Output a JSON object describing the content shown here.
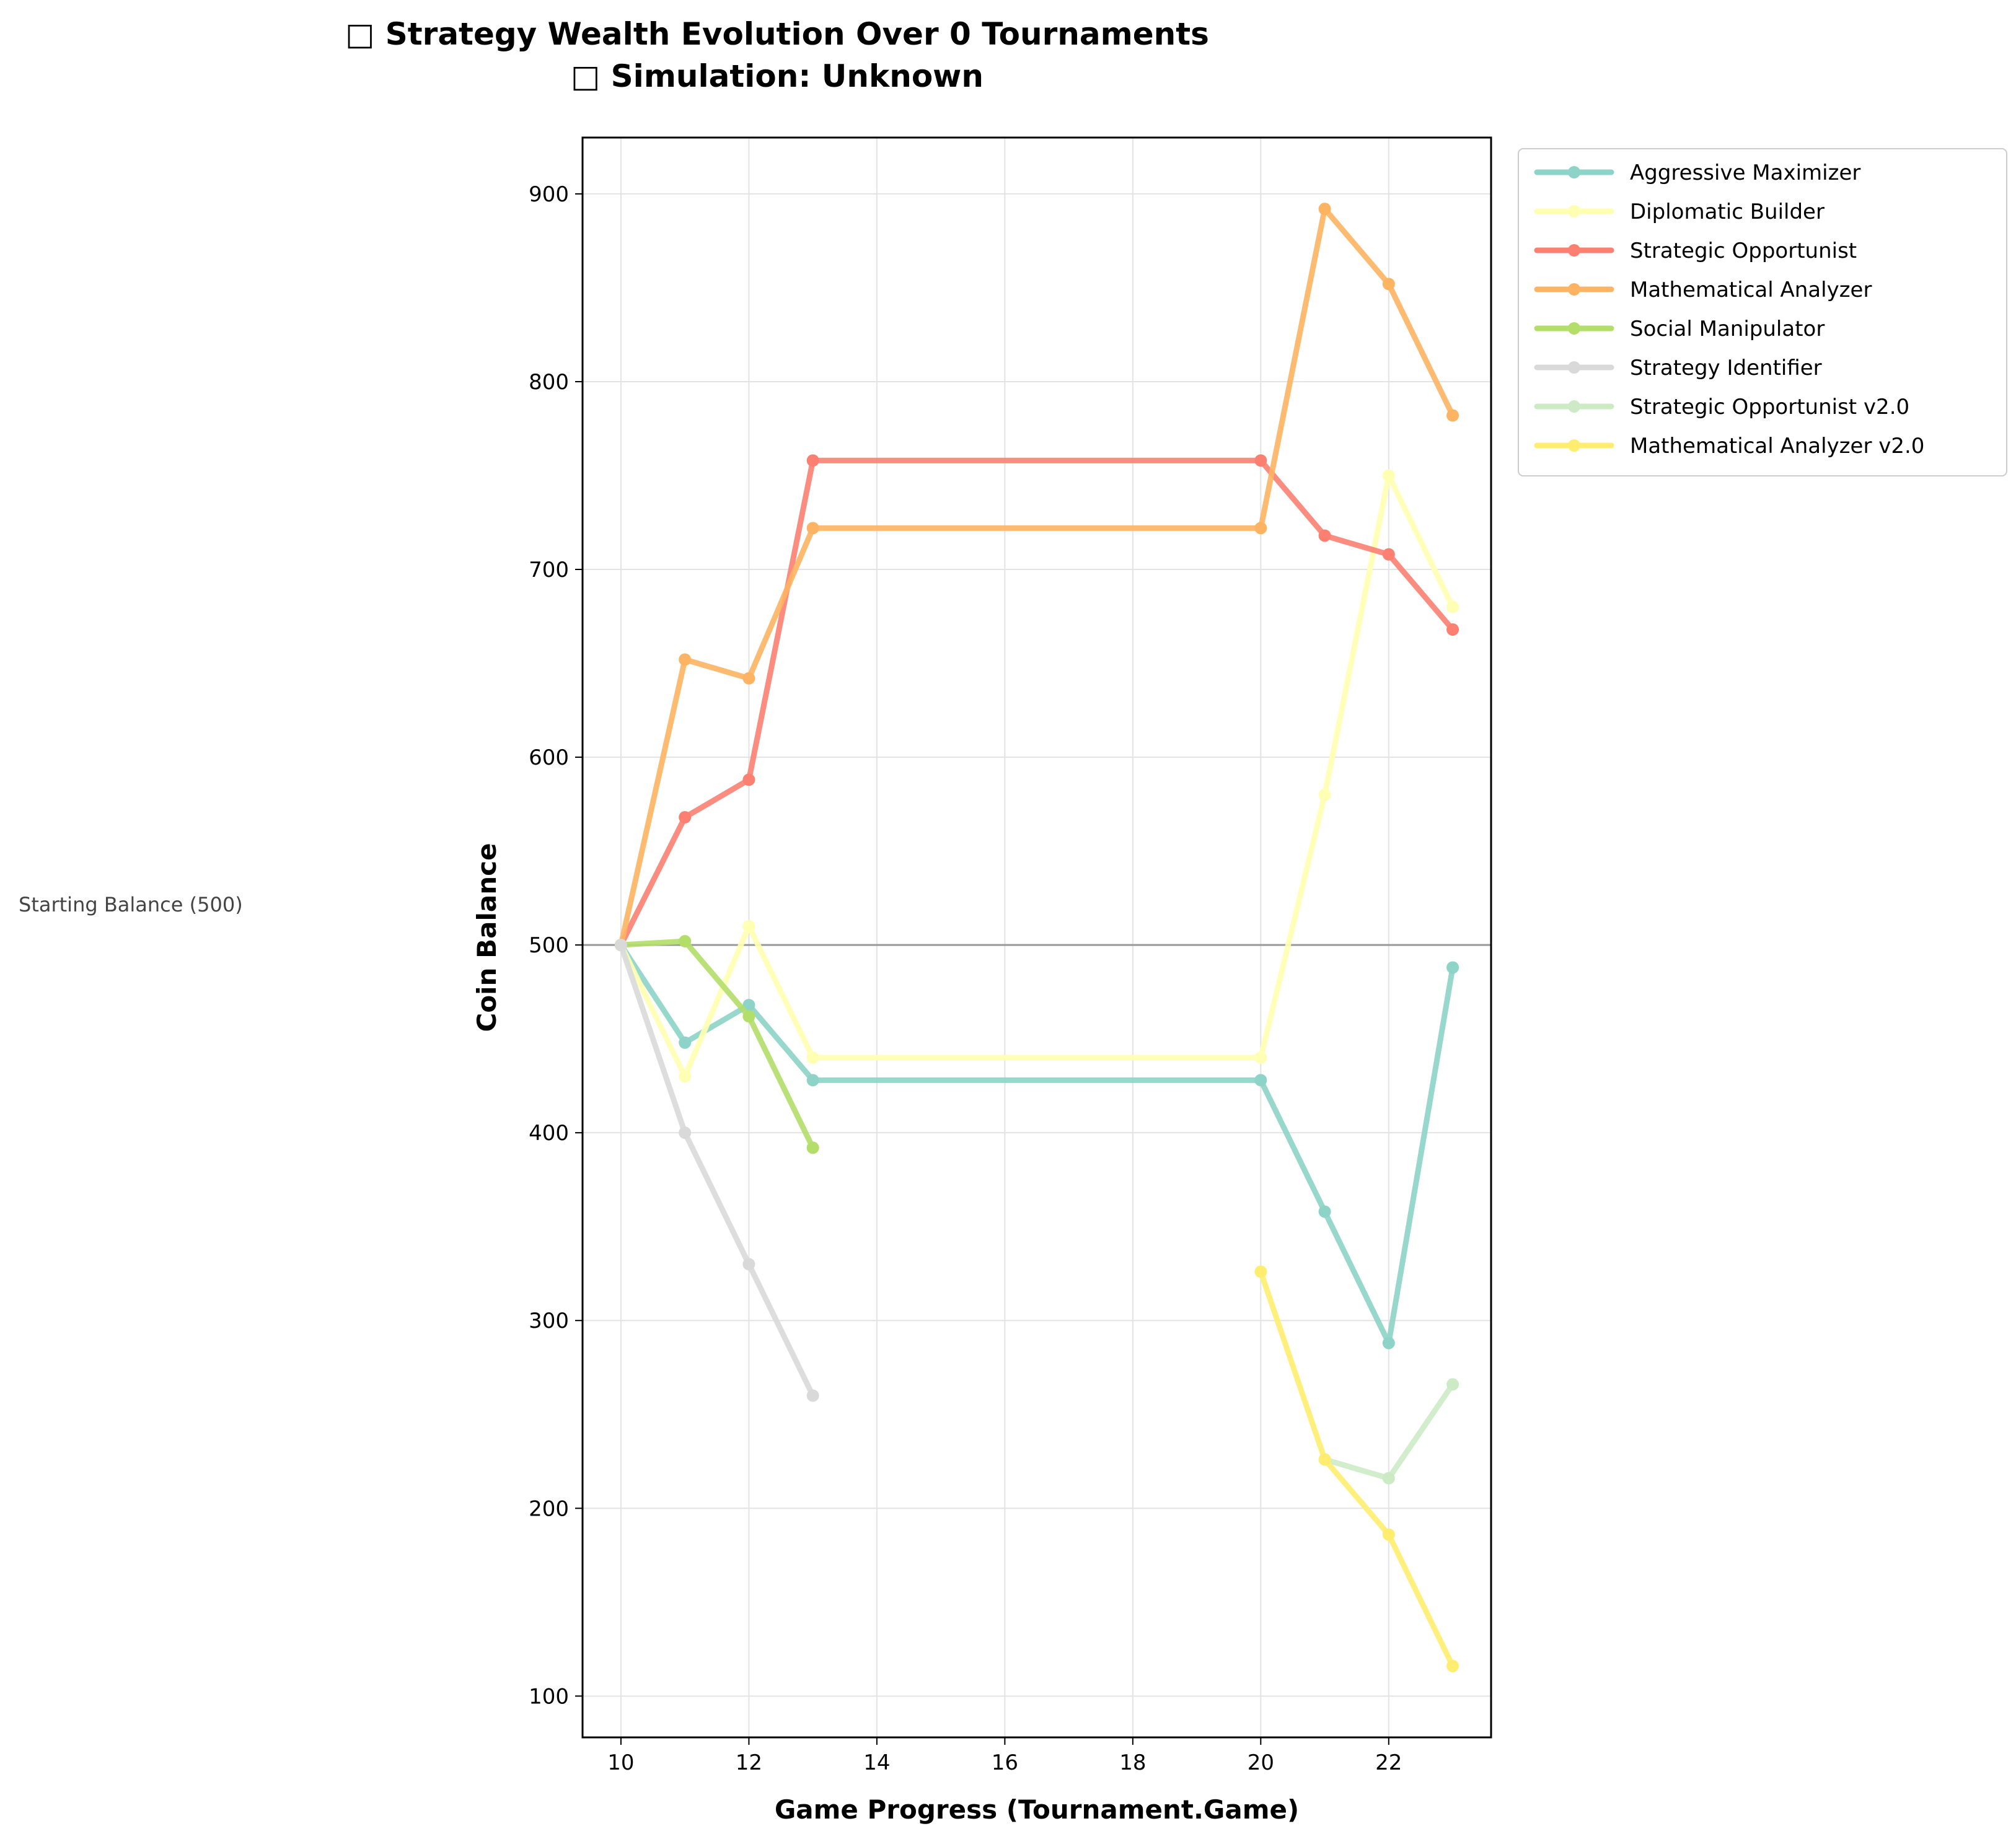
{
  "chart_data": {
    "type": "line",
    "title_line1": "□ Strategy Wealth Evolution Over 0 Tournaments",
    "title_line2": "□ Simulation: Unknown",
    "xlabel": "Game Progress (Tournament.Game)",
    "ylabel": "Coin Balance",
    "xlim": [
      9.4,
      23.6
    ],
    "ylim": [
      78,
      930
    ],
    "xticks": [
      10,
      12,
      14,
      16,
      18,
      20,
      22
    ],
    "yticks": [
      100,
      200,
      300,
      400,
      500,
      600,
      700,
      800,
      900
    ],
    "grid": true,
    "legend_position": "outside-top-right",
    "reference_line": {
      "y": 500,
      "label": "Starting Balance (500)",
      "color": "#999999"
    },
    "series": [
      {
        "name": "Aggressive Maximizer",
        "color": "#8dd3c7",
        "x": [
          10,
          11,
          12,
          13,
          20,
          21,
          22,
          23
        ],
        "y": [
          500,
          448,
          468,
          428,
          428,
          358,
          288,
          488
        ]
      },
      {
        "name": "Diplomatic Builder",
        "color": "#ffffb3",
        "x": [
          10,
          11,
          12,
          13,
          20,
          21,
          22,
          23
        ],
        "y": [
          500,
          430,
          510,
          440,
          440,
          580,
          750,
          680
        ]
      },
      {
        "name": "Strategic Opportunist",
        "color": "#fb8072",
        "x": [
          10,
          11,
          12,
          13,
          20,
          21,
          22,
          23
        ],
        "y": [
          500,
          568,
          588,
          758,
          758,
          718,
          708,
          668
        ]
      },
      {
        "name": "Mathematical Analyzer",
        "color": "#fdb462",
        "x": [
          10,
          11,
          12,
          13,
          20,
          21,
          22,
          23
        ],
        "y": [
          500,
          652,
          642,
          722,
          722,
          892,
          852,
          782
        ]
      },
      {
        "name": "Social Manipulator",
        "color": "#b3de69",
        "x": [
          10,
          11,
          12,
          13
        ],
        "y": [
          500,
          502,
          462,
          392
        ]
      },
      {
        "name": "Strategy Identifier",
        "color": "#d9d9d9",
        "x": [
          10,
          11,
          12,
          13
        ],
        "y": [
          500,
          400,
          330,
          260
        ]
      },
      {
        "name": "Strategic Opportunist v2.0",
        "color": "#ccebc5",
        "x": [
          21,
          22,
          23
        ],
        "y": [
          226,
          216,
          266
        ]
      },
      {
        "name": "Mathematical Analyzer v2.0",
        "color": "#ffed6f",
        "x": [
          20,
          21,
          22,
          23
        ],
        "y": [
          326,
          226,
          186,
          116
        ]
      }
    ]
  }
}
